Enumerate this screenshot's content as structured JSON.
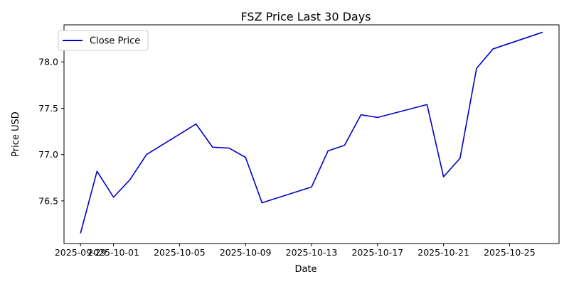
{
  "chart_data": {
    "type": "line",
    "title": "FSZ Price Last 30 Days",
    "xlabel": "Date",
    "ylabel": "Price USD",
    "x_tick_labels": [
      "2025-09-29",
      "2025-10-01",
      "2025-10-05",
      "2025-10-09",
      "2025-10-13",
      "2025-10-17",
      "2025-10-21",
      "2025-10-25"
    ],
    "y_tick_labels": [
      "76.5",
      "77.0",
      "77.5",
      "78.0"
    ],
    "ylim": [
      76.04,
      78.4
    ],
    "xlim": [
      "2025-09-28",
      "2025-10-28"
    ],
    "grid": false,
    "legend": "upper-left",
    "series": [
      {
        "name": "Close Price",
        "color": "#0000cc",
        "x": [
          "2025-09-29",
          "2025-09-30",
          "2025-10-01",
          "2025-10-02",
          "2025-10-03",
          "2025-10-06",
          "2025-10-07",
          "2025-10-08",
          "2025-10-09",
          "2025-10-10",
          "2025-10-13",
          "2025-10-14",
          "2025-10-15",
          "2025-10-16",
          "2025-10-17",
          "2025-10-20",
          "2025-10-21",
          "2025-10-22",
          "2025-10-23",
          "2025-10-24",
          "2025-10-27"
        ],
        "y": [
          76.15,
          76.82,
          76.54,
          76.73,
          77.0,
          77.33,
          77.08,
          77.07,
          76.97,
          76.48,
          76.65,
          77.04,
          77.1,
          77.43,
          77.4,
          77.54,
          76.76,
          76.96,
          77.93,
          78.14,
          78.32
        ]
      }
    ]
  }
}
